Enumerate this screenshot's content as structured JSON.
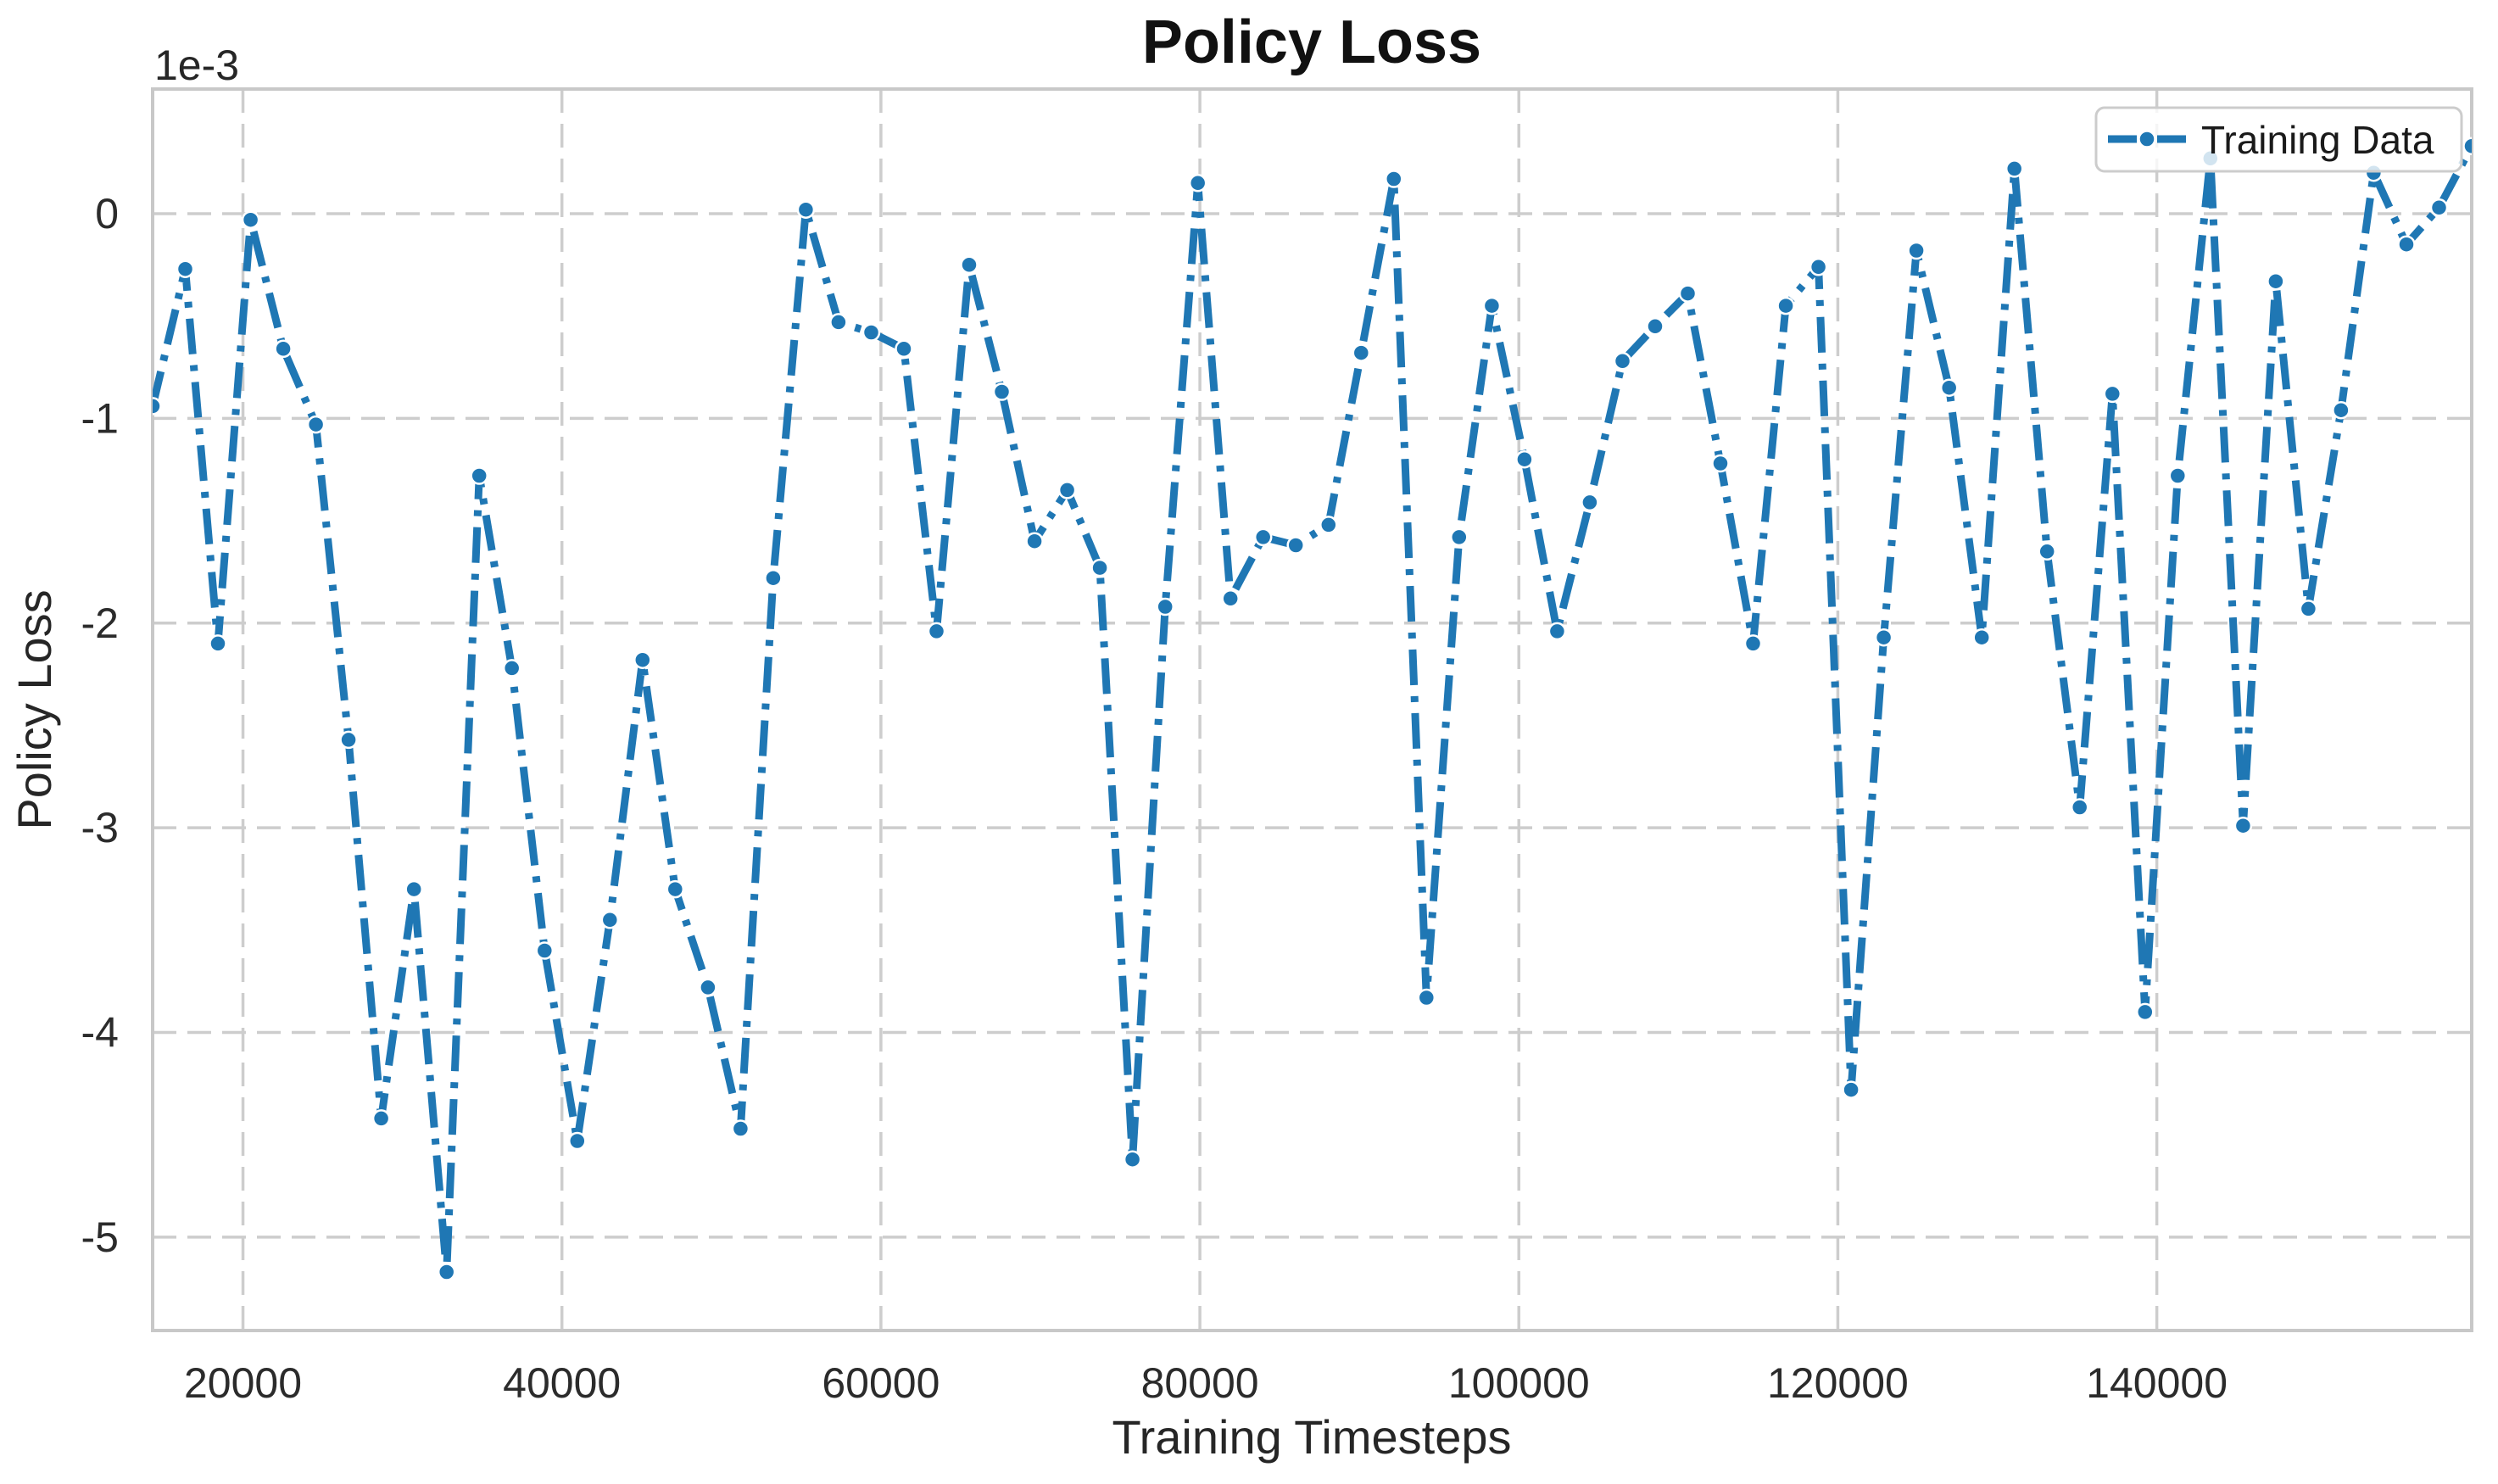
{
  "figure": {
    "title": "Policy Loss",
    "y_offset_label": "1e-3"
  },
  "colors": {
    "line": "#1f77b4",
    "grid": "#cdcdcd",
    "spine": "#c8c8c8",
    "text": "#262626",
    "marker_edge": "#ffffff",
    "legend_border": "#cccccc",
    "legend_background": "#ffffff"
  },
  "chart_data": {
    "type": "line",
    "title": "Policy Loss",
    "xlabel": "Training Timesteps",
    "ylabel": "Policy Loss",
    "y_offset_label": "1e-3",
    "values_scale": "1e-3",
    "grid": true,
    "line_style": "dash-dot",
    "marker": "circle",
    "legend": {
      "label": "Training Data",
      "position": "upper right"
    },
    "xlim": [
      14336,
      159744
    ],
    "ylim": [
      -5.456,
      0.609
    ],
    "x_ticks": [
      20000,
      40000,
      60000,
      80000,
      100000,
      120000,
      140000
    ],
    "y_ticks": {
      "values": [
        0,
        -1,
        -2,
        -3,
        -4,
        -5
      ],
      "labels": [
        "0",
        "-1",
        "-2",
        "-3",
        "-4",
        "-5"
      ]
    },
    "series": [
      {
        "name": "Training Data",
        "x": [
          14336,
          16384,
          18432,
          20480,
          22528,
          24576,
          26624,
          28672,
          30720,
          32768,
          34816,
          36864,
          38912,
          40960,
          43008,
          45056,
          47104,
          49152,
          51200,
          53248,
          55296,
          57344,
          59392,
          61440,
          63488,
          65536,
          67584,
          69632,
          71680,
          73728,
          75776,
          77824,
          79872,
          81920,
          83968,
          86016,
          88064,
          90112,
          92160,
          94208,
          96256,
          98304,
          100352,
          102400,
          104448,
          106496,
          108544,
          110592,
          112640,
          114688,
          116736,
          118784,
          120832,
          122880,
          124928,
          126976,
          129024,
          131072,
          133120,
          135168,
          137216,
          139264,
          141312,
          143360,
          145408,
          147456,
          149504,
          151552,
          153600,
          155648,
          157696,
          159744
        ],
        "values": [
          -0.94,
          -0.27,
          -2.1,
          -0.03,
          -0.66,
          -1.03,
          -2.57,
          -4.42,
          -3.3,
          -5.17,
          -1.28,
          -2.22,
          -3.6,
          -4.53,
          -3.45,
          -2.18,
          -3.3,
          -3.78,
          -4.47,
          -1.78,
          0.02,
          -0.53,
          -0.58,
          -0.66,
          -2.04,
          -0.25,
          -0.87,
          -1.6,
          -1.35,
          -1.73,
          -4.62,
          -1.92,
          0.15,
          -1.88,
          -1.58,
          -1.62,
          -1.52,
          -0.68,
          0.17,
          -3.83,
          -1.58,
          -0.45,
          -1.2,
          -2.04,
          -1.41,
          -0.72,
          -0.55,
          -0.39,
          -1.22,
          -2.1,
          -0.45,
          -0.26,
          -4.28,
          -2.07,
          -0.18,
          -0.85,
          -2.07,
          0.22,
          -1.65,
          -2.9,
          -0.88,
          -3.9,
          -1.28,
          0.27,
          -2.99,
          -0.33,
          -1.93,
          -0.96,
          0.2,
          -0.15,
          0.03,
          0.33
        ]
      }
    ]
  }
}
